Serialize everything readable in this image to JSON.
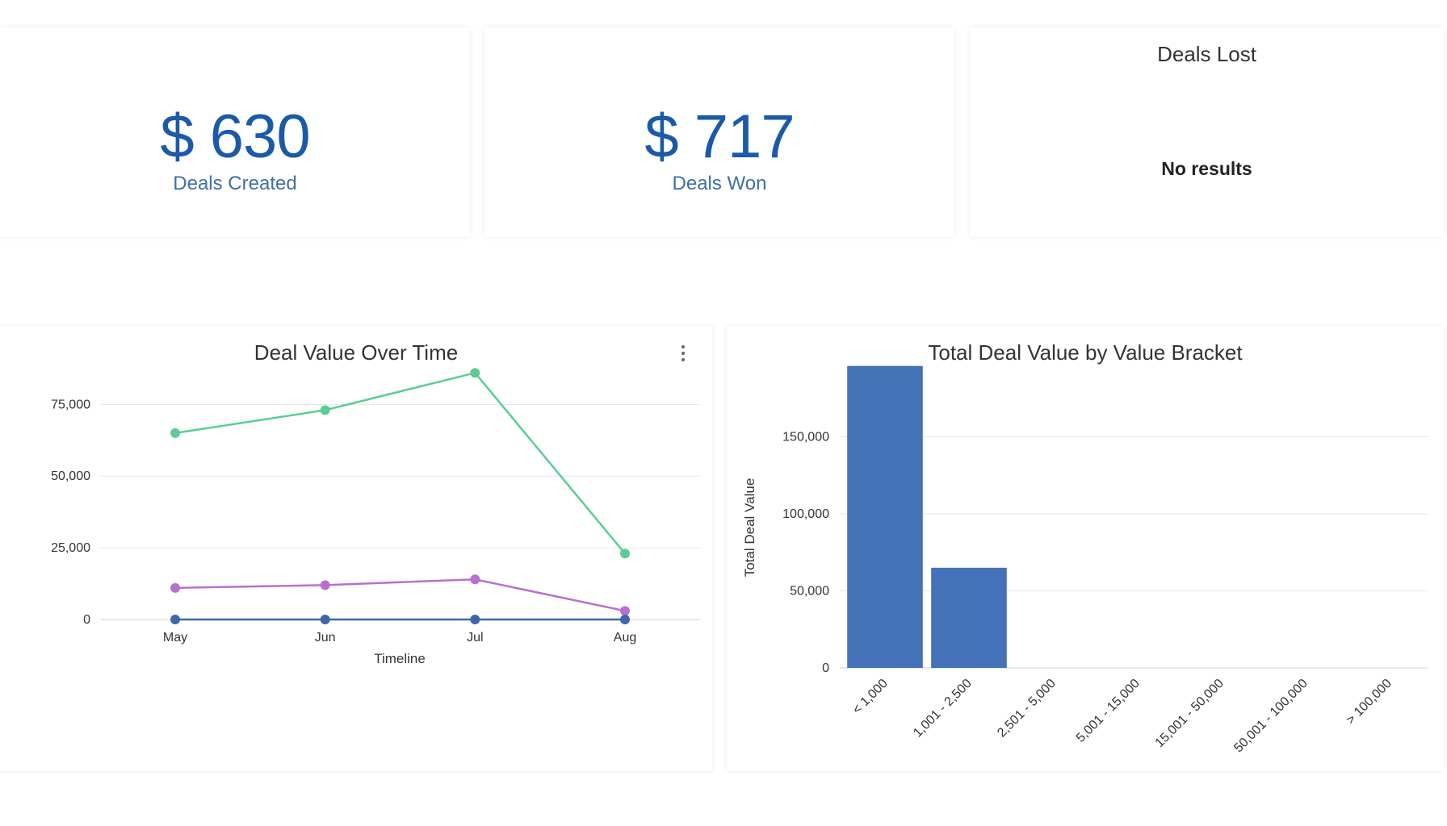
{
  "kpis": {
    "deals_created": {
      "value": "$ 630",
      "label": "Deals Created"
    },
    "deals_won": {
      "value": "$ 717",
      "label": "Deals Won"
    },
    "deals_lost": {
      "title": "Deals Lost",
      "message": "No results"
    }
  },
  "colors": {
    "kpi_value": "#1a5aa8",
    "kpi_label": "#3f6fa9",
    "series_green": "#5ccb97",
    "series_purple": "#b86fcf",
    "series_blue": "#3f66ad",
    "bar": "#4472b8",
    "grid": "#e6e6e6"
  },
  "line_chart": {
    "title": "Deal Value Over Time",
    "menu_icon": "vertical-ellipsis-icon",
    "chart_data": {
      "type": "line",
      "categories": [
        "May",
        "Jun",
        "Jul",
        "Aug"
      ],
      "series": [
        {
          "values": [
            65000,
            73000,
            86000,
            23000
          ]
        },
        {
          "values": [
            11000,
            12000,
            14000,
            3000
          ]
        },
        {
          "values": [
            0,
            0,
            0,
            0
          ]
        }
      ],
      "xlabel": "Timeline",
      "ylabel": "",
      "yticks": [
        0,
        25000,
        50000,
        75000
      ],
      "ytick_labels": [
        "0",
        "25,000",
        "50,000",
        "75,000"
      ],
      "ylim": [
        0,
        90000
      ],
      "grid": true
    }
  },
  "bar_chart": {
    "title": "Total Deal Value by Value Bracket",
    "chart_data": {
      "type": "bar",
      "categories": [
        "< 1,000",
        "1,001 - 2,500",
        "2,501 - 5,000",
        "5,001 - 15,000",
        "15,001 - 50,000",
        "50,001 - 100,000",
        "> 100,000"
      ],
      "values": [
        196000,
        65000,
        0,
        0,
        0,
        0,
        0
      ],
      "xlabel": "",
      "ylabel": "Total Deal Value",
      "yticks": [
        0,
        50000,
        100000,
        150000
      ],
      "ytick_labels": [
        "0",
        "50,000",
        "100,000",
        "150,000"
      ],
      "ylim": [
        0,
        200000
      ],
      "grid": true
    }
  }
}
